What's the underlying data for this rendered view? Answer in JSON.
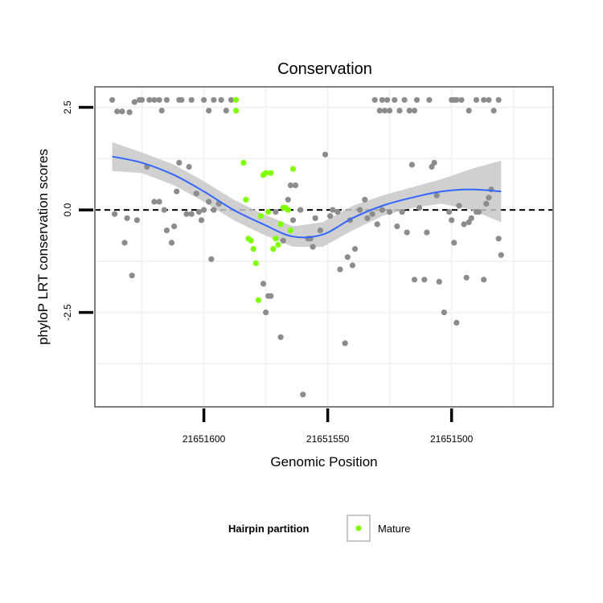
{
  "chart_data": {
    "type": "scatter",
    "title": "Conservation",
    "xlabel": "Genomic Position",
    "ylabel": "phyloP LRT conservation scores",
    "xlim": [
      21651644,
      21651459
    ],
    "ylim": [
      -4.8,
      3.0
    ],
    "x_reversed": true,
    "x_ticks": [
      21651600,
      21651550,
      21651500
    ],
    "x_tick_labels": [
      "21651600",
      "21651550",
      "21651500"
    ],
    "y_ticks": [
      2.5,
      0.0,
      -2.5
    ],
    "y_tick_labels": [
      "2.5",
      "0.0",
      "-2.5"
    ],
    "reference_line_y": 0.0,
    "grid": true,
    "legend": {
      "title": "Hairpin partition",
      "placement": "bottom",
      "entries": [
        {
          "label": "Mature",
          "color": "#7fff00"
        }
      ]
    },
    "colors": {
      "background_point": "#8c8c8c",
      "mature_point": "#7fff00",
      "smooth_line": "#3366ff",
      "ribbon": "#c8c8c8"
    },
    "series": [
      {
        "name": "Other",
        "color": "#8c8c8c",
        "points": [
          [
            21651637,
            2.68
          ],
          [
            21651635,
            2.4
          ],
          [
            21651633,
            2.4
          ],
          [
            21651630,
            2.38
          ],
          [
            21651628,
            2.63
          ],
          [
            21651626,
            2.68
          ],
          [
            21651625,
            2.68
          ],
          [
            21651622,
            2.68
          ],
          [
            21651620,
            2.68
          ],
          [
            21651618,
            2.68
          ],
          [
            21651617,
            2.42
          ],
          [
            21651615,
            2.68
          ],
          [
            21651610,
            2.68
          ],
          [
            21651609,
            2.68
          ],
          [
            21651605,
            2.68
          ],
          [
            21651600,
            2.68
          ],
          [
            21651598,
            2.42
          ],
          [
            21651596,
            2.68
          ],
          [
            21651593,
            2.68
          ],
          [
            21651591,
            2.42
          ],
          [
            21651589,
            2.68
          ],
          [
            21651636,
            -0.1
          ],
          [
            21651632,
            -0.8
          ],
          [
            21651631,
            -0.2
          ],
          [
            21651629,
            -1.6
          ],
          [
            21651627,
            -0.25
          ],
          [
            21651623,
            1.05
          ],
          [
            21651620,
            0.2
          ],
          [
            21651618,
            0.2
          ],
          [
            21651616,
            0.0
          ],
          [
            21651615,
            -0.5
          ],
          [
            21651613,
            -0.8
          ],
          [
            21651612,
            -0.4
          ],
          [
            21651611,
            0.45
          ],
          [
            21651610,
            1.15
          ],
          [
            21651607,
            -0.1
          ],
          [
            21651606,
            1.05
          ],
          [
            21651605,
            -0.1
          ],
          [
            21651603,
            0.4
          ],
          [
            21651602,
            -0.05
          ],
          [
            21651601,
            -0.25
          ],
          [
            21651600,
            0.0
          ],
          [
            21651598,
            0.2
          ],
          [
            21651597,
            -1.2
          ],
          [
            21651596,
            0.0
          ],
          [
            21651594,
            0.15
          ],
          [
            21651576,
            -1.8
          ],
          [
            21651575,
            -2.5
          ],
          [
            21651574,
            -2.1
          ],
          [
            21651573,
            -2.1
          ],
          [
            21651571,
            -0.05
          ],
          [
            21651569,
            -3.1
          ],
          [
            21651568,
            -0.75
          ],
          [
            21651566,
            0.25
          ],
          [
            21651565,
            0.6
          ],
          [
            21651564,
            -0.25
          ],
          [
            21651563,
            0.6
          ],
          [
            21651561,
            0.0
          ],
          [
            21651560,
            -4.5
          ],
          [
            21651558,
            -0.7
          ],
          [
            21651557,
            -0.7
          ],
          [
            21651556,
            -0.9
          ],
          [
            21651555,
            -0.2
          ],
          [
            21651553,
            -0.5
          ],
          [
            21651551,
            1.35
          ],
          [
            21651549,
            -0.15
          ],
          [
            21651548,
            0.0
          ],
          [
            21651546,
            -0.05
          ],
          [
            21651545,
            -1.45
          ],
          [
            21651543,
            -3.25
          ],
          [
            21651542,
            -1.15
          ],
          [
            21651541,
            -0.25
          ],
          [
            21651540,
            -1.35
          ],
          [
            21651539,
            -0.95
          ],
          [
            21651537,
            0.0
          ],
          [
            21651535,
            0.25
          ],
          [
            21651534,
            -0.2
          ],
          [
            21651532,
            -0.1
          ],
          [
            21651530,
            -0.35
          ],
          [
            21651528,
            0.0
          ],
          [
            21651531,
            2.68
          ],
          [
            21651529,
            2.42
          ],
          [
            21651528,
            2.68
          ],
          [
            21651527,
            2.42
          ],
          [
            21651526,
            2.68
          ],
          [
            21651525,
            2.42
          ],
          [
            21651523,
            2.68
          ],
          [
            21651521,
            2.42
          ],
          [
            21651519,
            2.68
          ],
          [
            21651517,
            2.42
          ],
          [
            21651515,
            2.42
          ],
          [
            21651514,
            2.68
          ],
          [
            21651525,
            -0.05
          ],
          [
            21651522,
            -0.4
          ],
          [
            21651520,
            -0.05
          ],
          [
            21651518,
            -0.55
          ],
          [
            21651516,
            1.1
          ],
          [
            21651515,
            -1.7
          ],
          [
            21651513,
            0.05
          ],
          [
            21651511,
            -1.7
          ],
          [
            21651510,
            -0.55
          ],
          [
            21651508,
            1.05
          ],
          [
            21651507,
            1.15
          ],
          [
            21651506,
            0.35
          ],
          [
            21651505,
            -1.75
          ],
          [
            21651503,
            -2.5
          ],
          [
            21651501,
            -0.05
          ],
          [
            21651500,
            -0.25
          ],
          [
            21651499,
            -0.8
          ],
          [
            21651498,
            -2.75
          ],
          [
            21651497,
            0.1
          ],
          [
            21651495,
            -0.35
          ],
          [
            21651494,
            -1.65
          ],
          [
            21651493,
            -0.3
          ],
          [
            21651492,
            -0.2
          ],
          [
            21651490,
            -0.05
          ],
          [
            21651489,
            -0.05
          ],
          [
            21651487,
            -1.7
          ],
          [
            21651486,
            0.15
          ],
          [
            21651485,
            0.3
          ],
          [
            21651484,
            0.5
          ],
          [
            21651481,
            -0.7
          ],
          [
            21651480,
            -1.1
          ],
          [
            21651509,
            2.68
          ],
          [
            21651500,
            2.68
          ],
          [
            21651499,
            2.68
          ],
          [
            21651498,
            2.68
          ],
          [
            21651496,
            2.68
          ],
          [
            21651493,
            2.42
          ],
          [
            21651490,
            2.68
          ],
          [
            21651487,
            2.68
          ],
          [
            21651485,
            2.68
          ],
          [
            21651483,
            2.42
          ],
          [
            21651481,
            2.68
          ]
        ]
      },
      {
        "name": "Mature",
        "color": "#7fff00",
        "points": [
          [
            21651587,
            2.68
          ],
          [
            21651587,
            2.42
          ],
          [
            21651584,
            1.15
          ],
          [
            21651583,
            0.25
          ],
          [
            21651582,
            -0.7
          ],
          [
            21651581,
            -0.75
          ],
          [
            21651580,
            -0.95
          ],
          [
            21651579,
            -1.3
          ],
          [
            21651578,
            -2.2
          ],
          [
            21651577,
            -0.15
          ],
          [
            21651576,
            0.85
          ],
          [
            21651575,
            0.9
          ],
          [
            21651574,
            -0.05
          ],
          [
            21651573,
            0.9
          ],
          [
            21651572,
            -0.95
          ],
          [
            21651571,
            -0.7
          ],
          [
            21651570,
            -0.85
          ],
          [
            21651569,
            -0.35
          ],
          [
            21651568,
            0.05
          ],
          [
            21651567,
            0.05
          ],
          [
            21651566,
            0.0
          ],
          [
            21651565,
            -0.5
          ],
          [
            21651564,
            1.0
          ]
        ]
      }
    ],
    "smooth_fit": {
      "x": [
        21651637,
        21651625,
        21651612,
        21651600,
        21651588,
        21651576,
        21651564,
        21651552,
        21651540,
        21651528,
        21651516,
        21651504,
        21651492,
        21651480
      ],
      "y": [
        1.3,
        1.15,
        0.85,
        0.45,
        0.0,
        -0.35,
        -0.65,
        -0.6,
        -0.2,
        0.1,
        0.3,
        0.45,
        0.5,
        0.45
      ],
      "lower": [
        0.95,
        0.9,
        0.6,
        0.2,
        -0.25,
        -0.6,
        -0.9,
        -0.9,
        -0.5,
        -0.15,
        0.05,
        0.15,
        0.0,
        -0.3
      ],
      "upper": [
        1.65,
        1.4,
        1.1,
        0.7,
        0.25,
        -0.1,
        -0.4,
        -0.3,
        0.1,
        0.35,
        0.55,
        0.75,
        1.0,
        1.2
      ]
    }
  }
}
